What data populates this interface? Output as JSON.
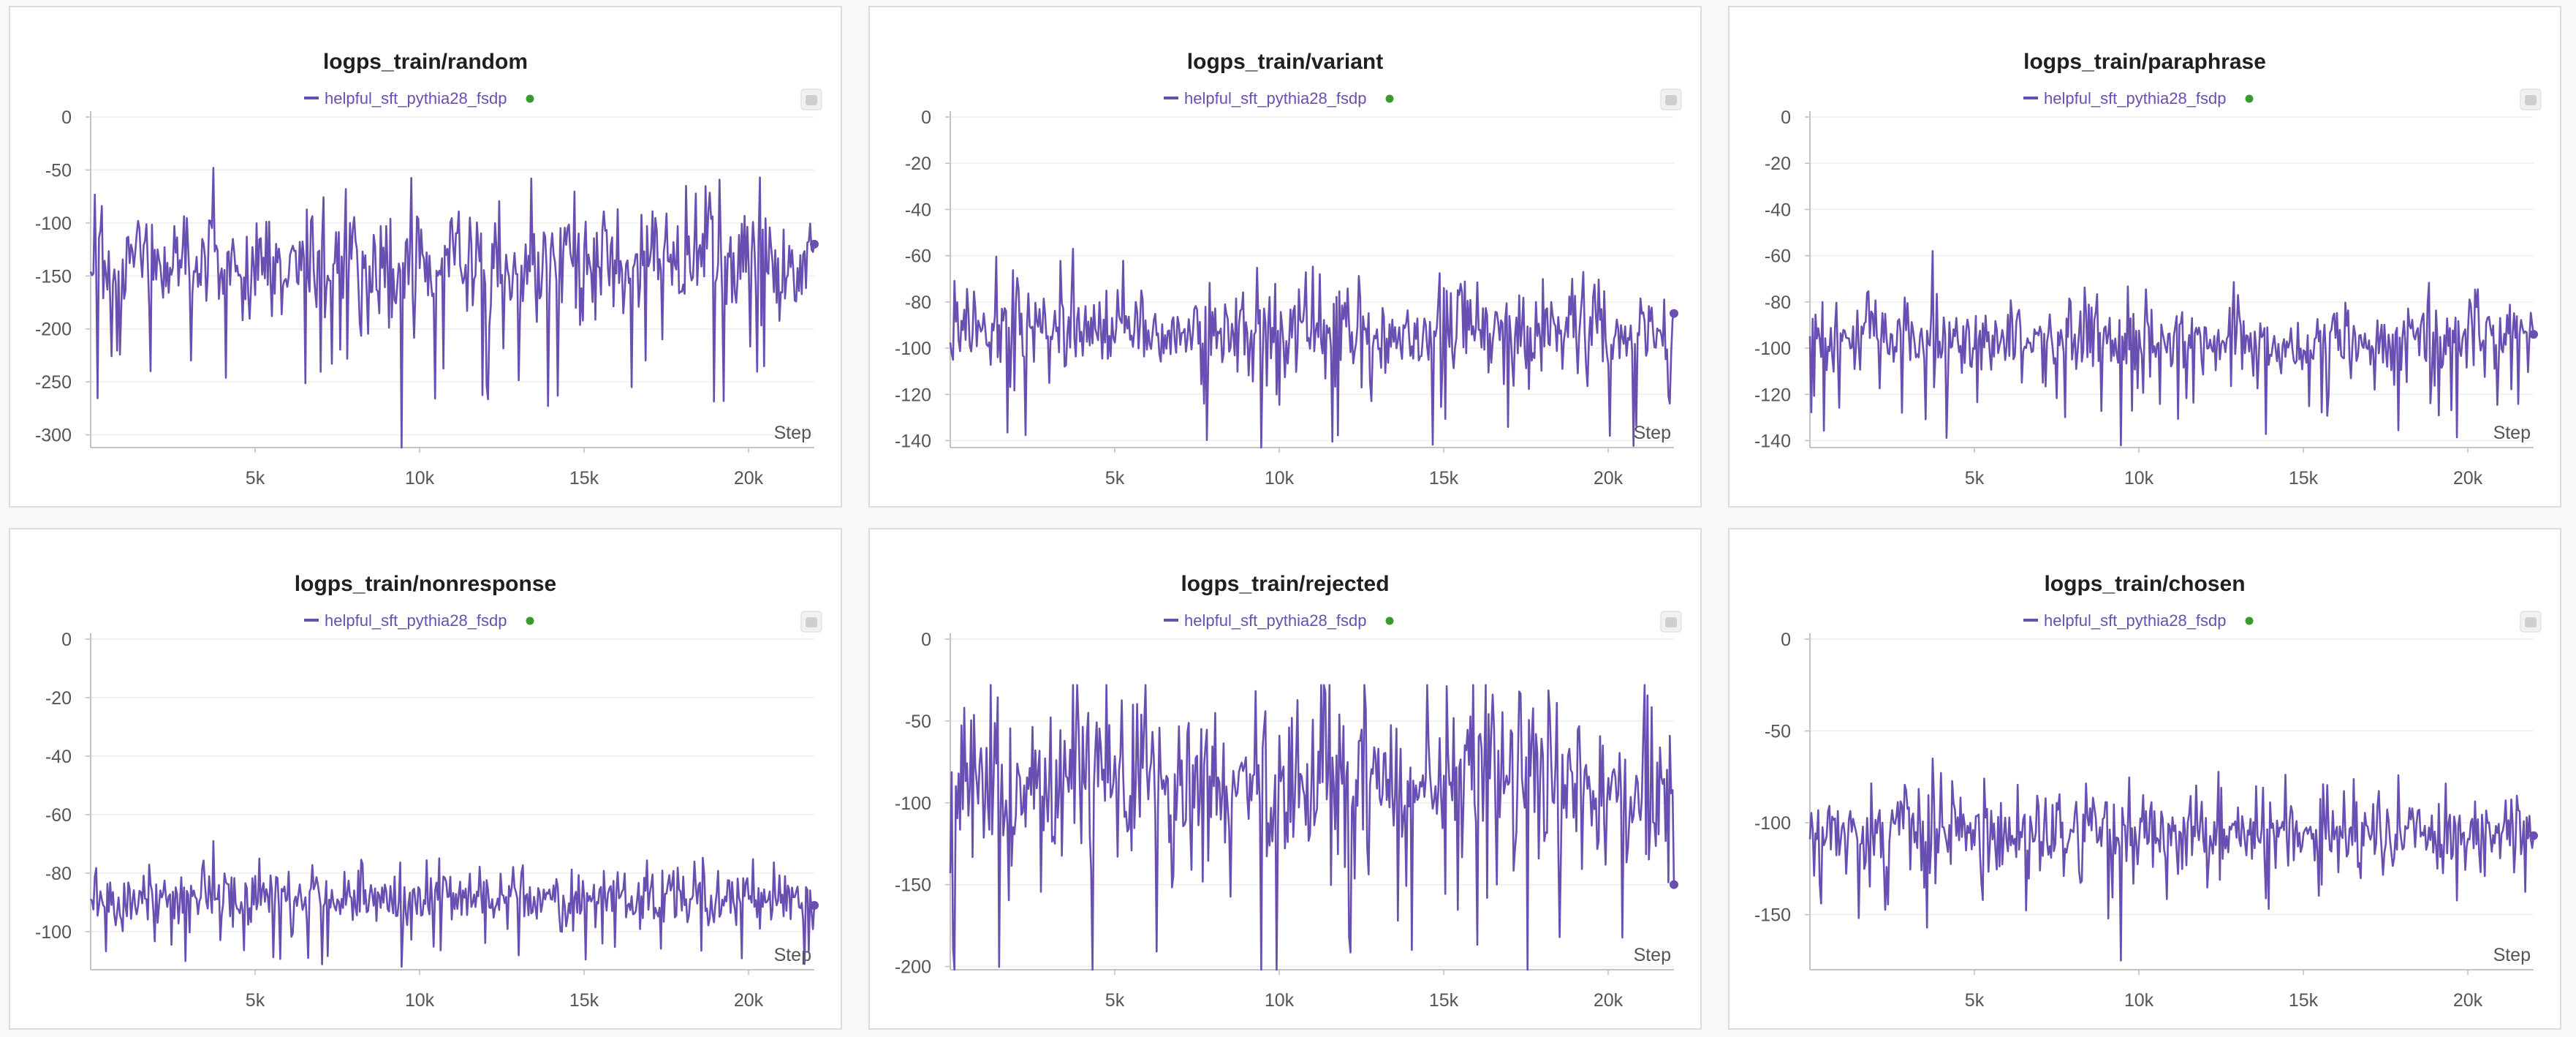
{
  "run": {
    "name": "helpful_sft_pythia28_fsdp",
    "color": "#6a4fb3",
    "status_color": "#3a9a2e"
  },
  "x_axis_label": "Step",
  "panel_menu_icon": "panel-menu-icon",
  "chart_data": [
    {
      "type": "line",
      "title": "logps_train/random",
      "xlabel": "Step",
      "ylabel": "",
      "xlim": [
        0,
        22000
      ],
      "ylim": [
        -312,
        0
      ],
      "x_ticks": [
        5000,
        10000,
        15000,
        20000
      ],
      "x_tick_labels": [
        "5k",
        "10k",
        "15k",
        "20k"
      ],
      "y_ticks": [
        0,
        -50,
        -100,
        -150,
        -200,
        -250,
        -300
      ],
      "y_tick_labels": [
        "0",
        "-50",
        "-100",
        "-150",
        "-200",
        "-250",
        "-300"
      ],
      "series": [
        {
          "name": "helpful_sft_pythia28_fsdp",
          "x_start": 0,
          "x_end": 22000,
          "n_points": 520,
          "mean": -140,
          "amplitude": 35,
          "min": -312,
          "max": -48,
          "last": -120
        }
      ]
    },
    {
      "type": "line",
      "title": "logps_train/variant",
      "xlabel": "Step",
      "ylabel": "",
      "xlim": [
        0,
        22000
      ],
      "ylim": [
        -143,
        0
      ],
      "x_ticks": [
        5000,
        10000,
        15000,
        20000
      ],
      "x_tick_labels": [
        "5k",
        "10k",
        "15k",
        "20k"
      ],
      "y_ticks": [
        0,
        -20,
        -40,
        -60,
        -80,
        -100,
        -120,
        -140
      ],
      "y_tick_labels": [
        "0",
        "-20",
        "-40",
        "-60",
        "-80",
        "-100",
        "-120",
        "-140"
      ],
      "series": [
        {
          "name": "helpful_sft_pythia28_fsdp",
          "x_start": 0,
          "x_end": 22000,
          "n_points": 520,
          "mean": -93,
          "amplitude": 13,
          "min": -143,
          "max": -57,
          "last": -85
        }
      ]
    },
    {
      "type": "line",
      "title": "logps_train/paraphrase",
      "xlabel": "Step",
      "ylabel": "",
      "xlim": [
        0,
        22000
      ],
      "ylim": [
        -143,
        0
      ],
      "x_ticks": [
        5000,
        10000,
        15000,
        20000
      ],
      "x_tick_labels": [
        "5k",
        "10k",
        "15k",
        "20k"
      ],
      "y_ticks": [
        0,
        -20,
        -40,
        -60,
        -80,
        -100,
        -120,
        -140
      ],
      "y_tick_labels": [
        "0",
        "-20",
        "-40",
        "-60",
        "-80",
        "-100",
        "-120",
        "-140"
      ],
      "series": [
        {
          "name": "helpful_sft_pythia28_fsdp",
          "x_start": 0,
          "x_end": 22000,
          "n_points": 520,
          "mean": -97,
          "amplitude": 11,
          "min": -142,
          "max": -58,
          "last": -94
        }
      ]
    },
    {
      "type": "line",
      "title": "logps_train/nonresponse",
      "xlabel": "Step",
      "ylabel": "",
      "xlim": [
        0,
        22000
      ],
      "ylim": [
        -113,
        0
      ],
      "x_ticks": [
        5000,
        10000,
        15000,
        20000
      ],
      "x_tick_labels": [
        "5k",
        "10k",
        "15k",
        "20k"
      ],
      "y_ticks": [
        0,
        -20,
        -40,
        -60,
        -80,
        -100
      ],
      "y_tick_labels": [
        "0",
        "-20",
        "-40",
        "-60",
        "-80",
        "-100"
      ],
      "series": [
        {
          "name": "helpful_sft_pythia28_fsdp",
          "x_start": 0,
          "x_end": 22000,
          "n_points": 520,
          "mean": -89,
          "amplitude": 6,
          "min": -112,
          "max": -69,
          "last": -91
        }
      ]
    },
    {
      "type": "line",
      "title": "logps_train/rejected",
      "xlabel": "Step",
      "ylabel": "",
      "xlim": [
        0,
        22000
      ],
      "ylim": [
        -202,
        0
      ],
      "x_ticks": [
        5000,
        10000,
        15000,
        20000
      ],
      "x_tick_labels": [
        "5k",
        "10k",
        "15k",
        "20k"
      ],
      "y_ticks": [
        0,
        -50,
        -100,
        -150,
        -200
      ],
      "y_tick_labels": [
        "0",
        "-50",
        "-100",
        "-150",
        "-200"
      ],
      "series": [
        {
          "name": "helpful_sft_pythia28_fsdp",
          "x_start": 0,
          "x_end": 22000,
          "n_points": 520,
          "mean": -90,
          "amplitude": 33,
          "min": -202,
          "max": -28,
          "last": -150
        }
      ]
    },
    {
      "type": "line",
      "title": "logps_train/chosen",
      "xlabel": "Step",
      "ylabel": "",
      "xlim": [
        0,
        22000
      ],
      "ylim": [
        -180,
        0
      ],
      "x_ticks": [
        5000,
        10000,
        15000,
        20000
      ],
      "x_tick_labels": [
        "5k",
        "10k",
        "15k",
        "20k"
      ],
      "y_ticks": [
        0,
        -50,
        -100,
        -150
      ],
      "y_tick_labels": [
        "0",
        "-50",
        "-100",
        "-150"
      ],
      "series": [
        {
          "name": "helpful_sft_pythia28_fsdp",
          "x_start": 0,
          "x_end": 22000,
          "n_points": 520,
          "mean": -105,
          "amplitude": 14,
          "min": -175,
          "max": -65,
          "last": -107
        }
      ]
    }
  ]
}
